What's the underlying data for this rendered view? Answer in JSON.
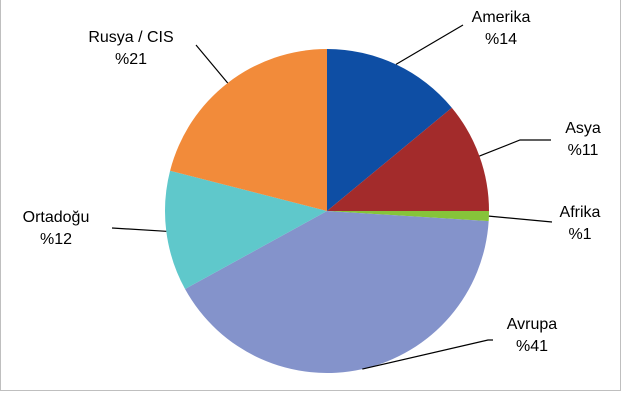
{
  "chart_data": {
    "type": "pie",
    "title": "",
    "start": "12 o'clock",
    "direction": "clockwise",
    "slices": [
      {
        "name": "Amerika",
        "value": 14,
        "label": "%14",
        "color": "#0e4ea4"
      },
      {
        "name": "Asya",
        "value": 11,
        "label": "%11",
        "color": "#a32b2b"
      },
      {
        "name": "Afrika",
        "value": 1,
        "label": "%1",
        "color": "#86c43a"
      },
      {
        "name": "Avrupa",
        "value": 41,
        "label": "%41",
        "color": "#8493cb"
      },
      {
        "name": "Ortadoğu",
        "value": 12,
        "label": "%12",
        "color": "#5fc8cb"
      },
      {
        "name": "Rusya / CIS",
        "value": 21,
        "label": "%21",
        "color": "#f28b3a"
      }
    ]
  }
}
